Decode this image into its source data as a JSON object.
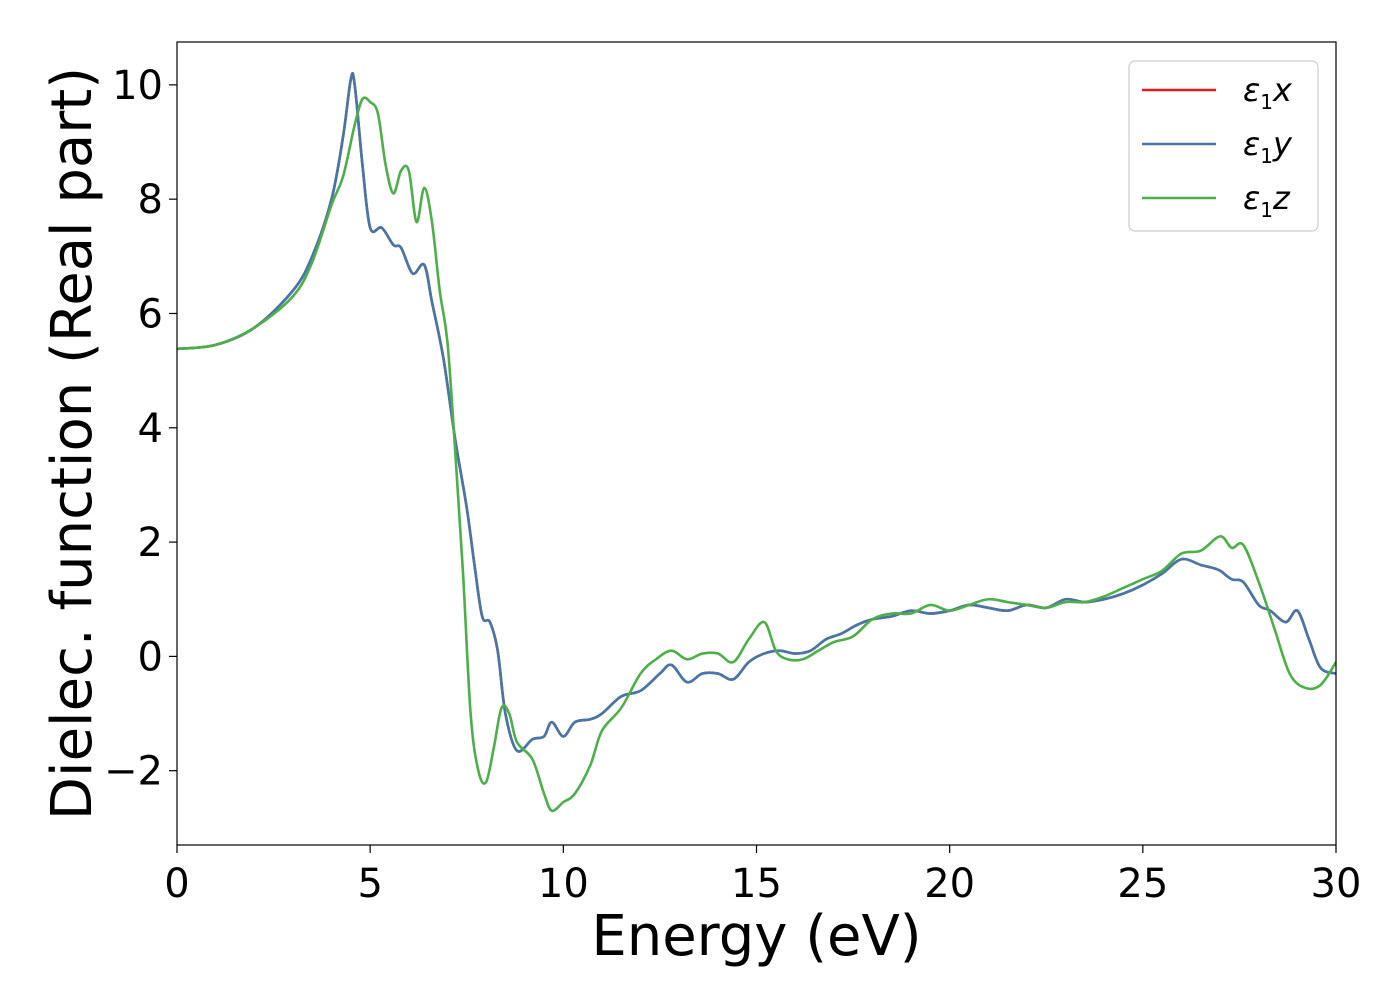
{
  "chart_data": {
    "type": "line",
    "title": "",
    "xlabel": "Energy (eV)",
    "ylabel": "Dielec. function (Real part)",
    "xlim": [
      0,
      30
    ],
    "ylim": [
      -3.3,
      10.75
    ],
    "xticks": [
      0,
      5,
      10,
      15,
      20,
      25,
      30
    ],
    "yticks": [
      -2,
      0,
      2,
      4,
      6,
      8,
      10
    ],
    "ytick_labels": [
      "−2",
      "0",
      "2",
      "4",
      "6",
      "8",
      "10"
    ],
    "grid": false,
    "legend_position": "top-right",
    "series": [
      {
        "name": "ε1x",
        "legend_base": "ε",
        "legend_sub": "1",
        "legend_suffix": "x",
        "color": "#e41a1c",
        "points": [
          [
            0,
            5.38
          ],
          [
            1,
            5.45
          ],
          [
            2,
            5.75
          ],
          [
            3,
            6.4
          ],
          [
            3.5,
            7.0
          ],
          [
            4.0,
            8.0
          ],
          [
            4.3,
            9.1
          ],
          [
            4.5,
            10.1
          ],
          [
            4.6,
            10.0
          ],
          [
            4.8,
            8.6
          ],
          [
            5.0,
            7.5
          ],
          [
            5.3,
            7.5
          ],
          [
            5.6,
            7.2
          ],
          [
            5.8,
            7.15
          ],
          [
            6.1,
            6.7
          ],
          [
            6.4,
            6.85
          ],
          [
            6.6,
            6.2
          ],
          [
            6.9,
            5.2
          ],
          [
            7.2,
            3.8
          ],
          [
            7.5,
            2.6
          ],
          [
            7.7,
            1.6
          ],
          [
            7.9,
            0.7
          ],
          [
            8.1,
            0.6
          ],
          [
            8.3,
            0.1
          ],
          [
            8.5,
            -1.0
          ],
          [
            8.8,
            -1.65
          ],
          [
            9.2,
            -1.45
          ],
          [
            9.5,
            -1.4
          ],
          [
            9.7,
            -1.15
          ],
          [
            10.0,
            -1.4
          ],
          [
            10.3,
            -1.15
          ],
          [
            10.7,
            -1.1
          ],
          [
            11.0,
            -1.0
          ],
          [
            11.5,
            -0.7
          ],
          [
            12.0,
            -0.6
          ],
          [
            12.5,
            -0.3
          ],
          [
            12.8,
            -0.15
          ],
          [
            13.2,
            -0.45
          ],
          [
            13.6,
            -0.3
          ],
          [
            14.0,
            -0.3
          ],
          [
            14.4,
            -0.4
          ],
          [
            14.8,
            -0.1
          ],
          [
            15.2,
            0.05
          ],
          [
            15.6,
            0.1
          ],
          [
            16.0,
            0.05
          ],
          [
            16.4,
            0.1
          ],
          [
            16.8,
            0.3
          ],
          [
            17.2,
            0.4
          ],
          [
            17.6,
            0.55
          ],
          [
            18.0,
            0.65
          ],
          [
            18.5,
            0.7
          ],
          [
            19.0,
            0.8
          ],
          [
            19.5,
            0.75
          ],
          [
            20.0,
            0.8
          ],
          [
            20.5,
            0.9
          ],
          [
            21.0,
            0.85
          ],
          [
            21.5,
            0.8
          ],
          [
            22.0,
            0.9
          ],
          [
            22.5,
            0.85
          ],
          [
            23.0,
            1.0
          ],
          [
            23.5,
            0.95
          ],
          [
            24.0,
            1.0
          ],
          [
            24.5,
            1.1
          ],
          [
            25.0,
            1.25
          ],
          [
            25.5,
            1.45
          ],
          [
            26.0,
            1.7
          ],
          [
            26.5,
            1.6
          ],
          [
            26.8,
            1.55
          ],
          [
            27.0,
            1.5
          ],
          [
            27.3,
            1.35
          ],
          [
            27.6,
            1.3
          ],
          [
            28.0,
            0.9
          ],
          [
            28.3,
            0.8
          ],
          [
            28.7,
            0.6
          ],
          [
            29.0,
            0.8
          ],
          [
            29.3,
            0.3
          ],
          [
            29.6,
            -0.2
          ],
          [
            30.0,
            -0.3
          ]
        ]
      },
      {
        "name": "ε1y",
        "legend_base": "ε",
        "legend_sub": "1",
        "legend_suffix": "y",
        "color": "#4477aa",
        "points": [
          [
            0,
            5.38
          ],
          [
            1,
            5.45
          ],
          [
            2,
            5.75
          ],
          [
            3,
            6.4
          ],
          [
            3.5,
            7.0
          ],
          [
            4.0,
            8.0
          ],
          [
            4.3,
            9.1
          ],
          [
            4.5,
            10.1
          ],
          [
            4.6,
            10.0
          ],
          [
            4.8,
            8.6
          ],
          [
            5.0,
            7.5
          ],
          [
            5.3,
            7.5
          ],
          [
            5.6,
            7.2
          ],
          [
            5.8,
            7.15
          ],
          [
            6.1,
            6.7
          ],
          [
            6.4,
            6.85
          ],
          [
            6.6,
            6.2
          ],
          [
            6.9,
            5.2
          ],
          [
            7.2,
            3.8
          ],
          [
            7.5,
            2.6
          ],
          [
            7.7,
            1.6
          ],
          [
            7.9,
            0.7
          ],
          [
            8.1,
            0.6
          ],
          [
            8.3,
            0.1
          ],
          [
            8.5,
            -1.0
          ],
          [
            8.8,
            -1.65
          ],
          [
            9.2,
            -1.45
          ],
          [
            9.5,
            -1.4
          ],
          [
            9.7,
            -1.15
          ],
          [
            10.0,
            -1.4
          ],
          [
            10.3,
            -1.15
          ],
          [
            10.7,
            -1.1
          ],
          [
            11.0,
            -1.0
          ],
          [
            11.5,
            -0.7
          ],
          [
            12.0,
            -0.6
          ],
          [
            12.5,
            -0.3
          ],
          [
            12.8,
            -0.15
          ],
          [
            13.2,
            -0.45
          ],
          [
            13.6,
            -0.3
          ],
          [
            14.0,
            -0.3
          ],
          [
            14.4,
            -0.4
          ],
          [
            14.8,
            -0.1
          ],
          [
            15.2,
            0.05
          ],
          [
            15.6,
            0.1
          ],
          [
            16.0,
            0.05
          ],
          [
            16.4,
            0.1
          ],
          [
            16.8,
            0.3
          ],
          [
            17.2,
            0.4
          ],
          [
            17.6,
            0.55
          ],
          [
            18.0,
            0.65
          ],
          [
            18.5,
            0.7
          ],
          [
            19.0,
            0.8
          ],
          [
            19.5,
            0.75
          ],
          [
            20.0,
            0.8
          ],
          [
            20.5,
            0.9
          ],
          [
            21.0,
            0.85
          ],
          [
            21.5,
            0.8
          ],
          [
            22.0,
            0.9
          ],
          [
            22.5,
            0.85
          ],
          [
            23.0,
            1.0
          ],
          [
            23.5,
            0.95
          ],
          [
            24.0,
            1.0
          ],
          [
            24.5,
            1.1
          ],
          [
            25.0,
            1.25
          ],
          [
            25.5,
            1.45
          ],
          [
            26.0,
            1.7
          ],
          [
            26.5,
            1.6
          ],
          [
            26.8,
            1.55
          ],
          [
            27.0,
            1.5
          ],
          [
            27.3,
            1.35
          ],
          [
            27.6,
            1.3
          ],
          [
            28.0,
            0.9
          ],
          [
            28.3,
            0.8
          ],
          [
            28.7,
            0.6
          ],
          [
            29.0,
            0.8
          ],
          [
            29.3,
            0.3
          ],
          [
            29.6,
            -0.2
          ],
          [
            30.0,
            -0.3
          ]
        ]
      },
      {
        "name": "ε1z",
        "legend_base": "ε",
        "legend_sub": "1",
        "legend_suffix": "z",
        "color": "#4daf4a",
        "points": [
          [
            0,
            5.38
          ],
          [
            1,
            5.45
          ],
          [
            2,
            5.75
          ],
          [
            3,
            6.3
          ],
          [
            3.5,
            6.9
          ],
          [
            4.0,
            7.9
          ],
          [
            4.3,
            8.4
          ],
          [
            4.6,
            9.3
          ],
          [
            4.8,
            9.75
          ],
          [
            5.0,
            9.7
          ],
          [
            5.2,
            9.5
          ],
          [
            5.4,
            8.6
          ],
          [
            5.6,
            8.1
          ],
          [
            5.8,
            8.5
          ],
          [
            6.0,
            8.5
          ],
          [
            6.2,
            7.6
          ],
          [
            6.4,
            8.2
          ],
          [
            6.6,
            7.6
          ],
          [
            6.8,
            6.4
          ],
          [
            7.0,
            5.5
          ],
          [
            7.2,
            3.6
          ],
          [
            7.4,
            1.5
          ],
          [
            7.6,
            -1.0
          ],
          [
            7.8,
            -2.0
          ],
          [
            8.0,
            -2.2
          ],
          [
            8.2,
            -1.6
          ],
          [
            8.4,
            -0.9
          ],
          [
            8.6,
            -1.0
          ],
          [
            8.8,
            -1.5
          ],
          [
            9.2,
            -1.8
          ],
          [
            9.5,
            -2.4
          ],
          [
            9.7,
            -2.7
          ],
          [
            10.0,
            -2.55
          ],
          [
            10.3,
            -2.4
          ],
          [
            10.7,
            -1.9
          ],
          [
            11.0,
            -1.3
          ],
          [
            11.5,
            -0.9
          ],
          [
            12.0,
            -0.3
          ],
          [
            12.4,
            -0.05
          ],
          [
            12.8,
            0.1
          ],
          [
            13.2,
            -0.05
          ],
          [
            13.6,
            0.05
          ],
          [
            14.0,
            0.05
          ],
          [
            14.4,
            -0.1
          ],
          [
            14.8,
            0.3
          ],
          [
            15.2,
            0.6
          ],
          [
            15.5,
            0.1
          ],
          [
            15.8,
            -0.05
          ],
          [
            16.2,
            -0.05
          ],
          [
            16.6,
            0.1
          ],
          [
            17.0,
            0.25
          ],
          [
            17.5,
            0.35
          ],
          [
            18.0,
            0.65
          ],
          [
            18.5,
            0.75
          ],
          [
            19.0,
            0.75
          ],
          [
            19.5,
            0.9
          ],
          [
            20.0,
            0.8
          ],
          [
            20.5,
            0.9
          ],
          [
            21.0,
            1.0
          ],
          [
            21.5,
            0.95
          ],
          [
            22.0,
            0.9
          ],
          [
            22.5,
            0.85
          ],
          [
            23.0,
            0.95
          ],
          [
            23.5,
            0.95
          ],
          [
            24.0,
            1.05
          ],
          [
            24.5,
            1.2
          ],
          [
            25.0,
            1.35
          ],
          [
            25.5,
            1.5
          ],
          [
            26.0,
            1.8
          ],
          [
            26.5,
            1.85
          ],
          [
            27.0,
            2.1
          ],
          [
            27.3,
            1.9
          ],
          [
            27.6,
            1.95
          ],
          [
            28.0,
            1.3
          ],
          [
            28.4,
            0.5
          ],
          [
            28.8,
            -0.3
          ],
          [
            29.2,
            -0.55
          ],
          [
            29.6,
            -0.5
          ],
          [
            30.0,
            -0.1
          ]
        ]
      }
    ]
  }
}
